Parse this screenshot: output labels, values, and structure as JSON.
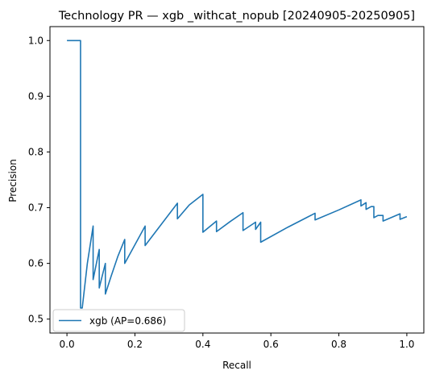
{
  "chart_data": {
    "type": "line",
    "title": "Technology PR — xgb _withcat_nopub [20240905-20250905]",
    "xlabel": "Recall",
    "ylabel": "Precision",
    "xlim": [
      -0.05,
      1.05
    ],
    "ylim": [
      0.475,
      1.025
    ],
    "xticks": [
      0.0,
      0.2,
      0.4,
      0.6,
      0.8,
      1.0
    ],
    "xtick_labels": [
      "0.0",
      "0.2",
      "0.4",
      "0.6",
      "0.8",
      "1.0"
    ],
    "yticks": [
      0.5,
      0.6,
      0.7,
      0.8,
      0.9,
      1.0
    ],
    "ytick_labels": [
      "0.5",
      "0.6",
      "0.7",
      "0.8",
      "0.9",
      "1.0"
    ],
    "grid": false,
    "legend_position": "lower-left",
    "series": [
      {
        "name": "xgb (AP=0.686)",
        "color": "#1f77b4",
        "points": [
          [
            0.0,
            1.0
          ],
          [
            0.04,
            1.0
          ],
          [
            0.04,
            0.52
          ],
          [
            0.045,
            0.52
          ],
          [
            0.06,
            0.6
          ],
          [
            0.077,
            0.667
          ],
          [
            0.077,
            0.571
          ],
          [
            0.095,
            0.625
          ],
          [
            0.095,
            0.556
          ],
          [
            0.113,
            0.6
          ],
          [
            0.113,
            0.545
          ],
          [
            0.13,
            0.577
          ],
          [
            0.15,
            0.613
          ],
          [
            0.17,
            0.643
          ],
          [
            0.17,
            0.6
          ],
          [
            0.23,
            0.667
          ],
          [
            0.23,
            0.632
          ],
          [
            0.28,
            0.672
          ],
          [
            0.325,
            0.708
          ],
          [
            0.325,
            0.68
          ],
          [
            0.36,
            0.705
          ],
          [
            0.4,
            0.724
          ],
          [
            0.4,
            0.656
          ],
          [
            0.44,
            0.676
          ],
          [
            0.44,
            0.657
          ],
          [
            0.48,
            0.675
          ],
          [
            0.518,
            0.691
          ],
          [
            0.518,
            0.659
          ],
          [
            0.555,
            0.674
          ],
          [
            0.555,
            0.661
          ],
          [
            0.57,
            0.674
          ],
          [
            0.57,
            0.638
          ],
          [
            0.65,
            0.665
          ],
          [
            0.73,
            0.69
          ],
          [
            0.73,
            0.678
          ],
          [
            0.8,
            0.696
          ],
          [
            0.865,
            0.714
          ],
          [
            0.865,
            0.703
          ],
          [
            0.88,
            0.709
          ],
          [
            0.88,
            0.697
          ],
          [
            0.895,
            0.702
          ],
          [
            0.903,
            0.702
          ],
          [
            0.903,
            0.682
          ],
          [
            0.915,
            0.686
          ],
          [
            0.93,
            0.686
          ],
          [
            0.93,
            0.676
          ],
          [
            0.98,
            0.689
          ],
          [
            0.98,
            0.679
          ],
          [
            1.0,
            0.684
          ]
        ]
      }
    ]
  }
}
